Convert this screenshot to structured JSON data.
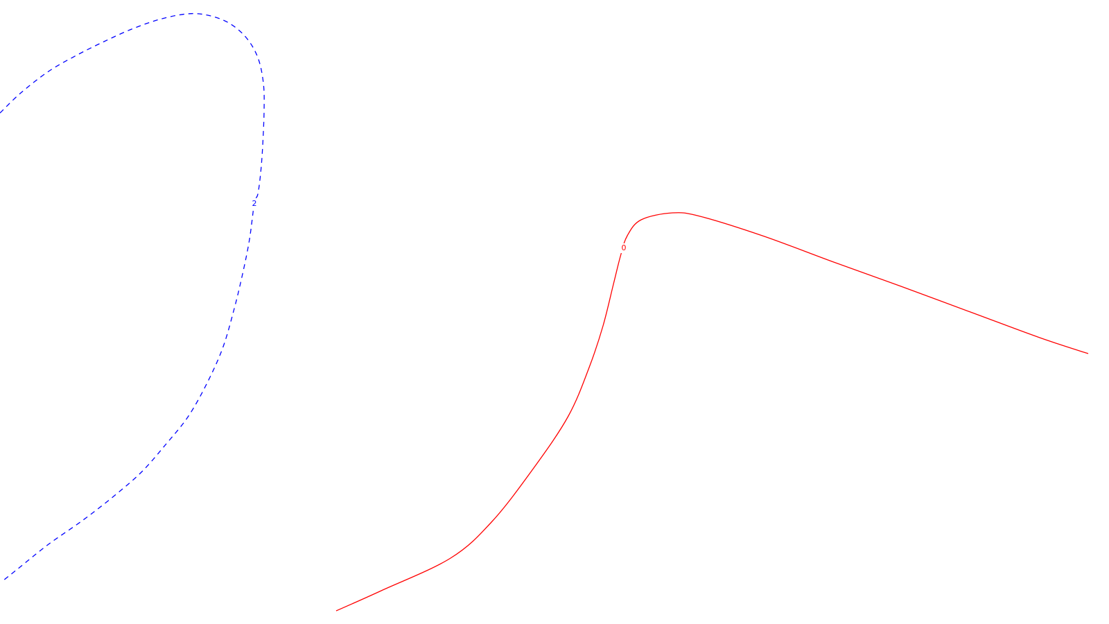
{
  "chart_data": {
    "type": "line",
    "title": "",
    "xlabel": "",
    "ylabel": "",
    "grid": false,
    "legend": "none",
    "series": [
      {
        "level_label": "2",
        "color": "#0000ff",
        "style": "dashed",
        "x": [
          0,
          30,
          70,
          110,
          150,
          190,
          230,
          270,
          300,
          330,
          355,
          372,
          380,
          381,
          379,
          376,
          372,
          367,
          360,
          350,
          338,
          322,
          300,
          272,
          240,
          205,
          165,
          120,
          70,
          30,
          5
        ],
        "y": [
          737,
          766,
          797,
          820,
          840,
          858,
          872,
          880,
          878,
          867,
          846,
          817,
          780,
          740,
          690,
          650,
          620,
          607,
          555,
          505,
          455,
          400,
          350,
          300,
          260,
          220,
          185,
          150,
          115,
          83,
          63
        ]
      },
      {
        "level_label": "0",
        "color": "#ff0000",
        "style": "solid",
        "x": [
          485,
          550,
          650,
          710,
          770,
          820,
          850,
          870,
          885,
          895,
          905,
          925,
          970,
          1010,
          1100,
          1200,
          1300,
          1400,
          1500,
          1570
        ],
        "y": [
          19,
          48,
          95,
          148,
          225,
          300,
          370,
          430,
          490,
          530,
          560,
          583,
          593,
          588,
          560,
          523,
          487,
          450,
          413,
          390
        ]
      }
    ]
  }
}
